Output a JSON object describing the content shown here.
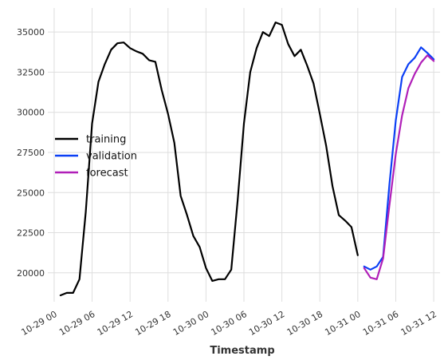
{
  "chart_data": {
    "type": "line",
    "title": "",
    "xlabel": "Timestamp",
    "ylabel": "",
    "x_tick_labels": [
      "10-29 00",
      "10-29 06",
      "10-29 12",
      "10-29 18",
      "10-30 00",
      "10-30 06",
      "10-30 12",
      "10-30 18",
      "10-31 00",
      "10-31 06",
      "10-31 12"
    ],
    "y_tick_labels": [
      "20000",
      "22500",
      "25000",
      "27500",
      "30000",
      "32500",
      "35000"
    ],
    "x_range_hours": [
      -1,
      61
    ],
    "y_range": [
      18200,
      36500
    ],
    "grid": true,
    "legend_position": "center-left",
    "series": [
      {
        "name": "training",
        "color": "#000000",
        "x_hours": [
          1,
          2,
          3,
          4,
          5,
          6,
          7,
          8,
          9,
          10,
          11,
          12,
          13,
          14,
          15,
          16,
          17,
          18,
          19,
          20,
          21,
          22,
          23,
          24,
          25,
          26,
          27,
          28,
          29,
          30,
          31,
          32,
          33,
          34,
          35,
          36,
          37,
          38,
          39,
          40,
          41,
          42,
          43,
          44,
          45,
          46,
          47,
          48
        ],
        "values": [
          18600,
          18750,
          18750,
          19600,
          23800,
          29300,
          31900,
          33000,
          33900,
          34300,
          34350,
          34000,
          33800,
          33650,
          33250,
          33150,
          31400,
          29900,
          28100,
          24800,
          23600,
          22300,
          21600,
          20300,
          19500,
          19600,
          19600,
          20200,
          24500,
          29300,
          32500,
          34000,
          35000,
          34750,
          35600,
          35450,
          34250,
          33500,
          33900,
          32900,
          31800,
          29900,
          27900,
          25400,
          23600,
          23250,
          22850,
          21100
        ]
      },
      {
        "name": "validation",
        "color": "#0b3ff5",
        "x_hours": [
          49,
          50,
          51,
          52,
          53,
          54,
          55,
          56,
          57,
          58,
          59,
          60
        ],
        "values": [
          20400,
          20200,
          20400,
          21000,
          25500,
          29500,
          32200,
          33000,
          33400,
          34050,
          33700,
          33300
        ]
      },
      {
        "name": "forecast",
        "color": "#b01fb8",
        "x_hours": [
          49,
          50,
          51,
          52,
          53,
          54,
          55,
          56,
          57,
          58,
          59,
          60
        ],
        "values": [
          20300,
          19700,
          19600,
          20900,
          24200,
          27400,
          29800,
          31500,
          32400,
          33100,
          33550,
          33200
        ]
      }
    ]
  }
}
